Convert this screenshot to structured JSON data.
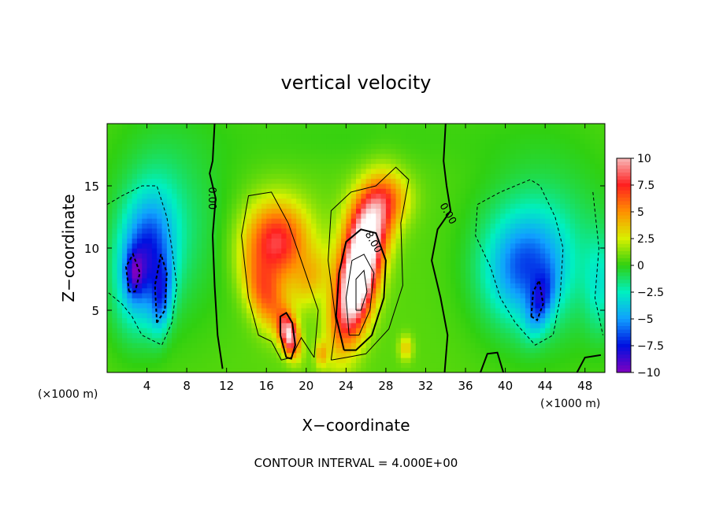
{
  "chart_data": {
    "type": "heatmap",
    "title": "vertical velocity",
    "xlabel": "X−coordinate",
    "ylabel": "Z−coordinate",
    "x_units": "(×1000 m)",
    "x_units_secondary": "(×1000 m)",
    "xlim": [
      0,
      50
    ],
    "ylim": [
      0,
      20
    ],
    "x_ticks": [
      "4",
      "8",
      "12",
      "16",
      "20",
      "24",
      "28",
      "32",
      "36",
      "40",
      "44",
      "48"
    ],
    "x_tick_values": [
      4,
      8,
      12,
      16,
      20,
      24,
      28,
      32,
      36,
      40,
      44,
      48
    ],
    "y_ticks": [
      "5",
      "10",
      "15"
    ],
    "y_tick_values": [
      5,
      10,
      15
    ],
    "colorbar": {
      "labels": [
        "10",
        "7.5",
        "5",
        "2.5",
        "0",
        "−2.5",
        "−5",
        "−7.5",
        "−10"
      ],
      "values": [
        10,
        7.5,
        5,
        2.5,
        0,
        -2.5,
        -5,
        -7.5,
        -10
      ],
      "range": [
        -10,
        10
      ],
      "colors": [
        "#f8b8b8",
        "#ff2020",
        "#ff9000",
        "#d8f000",
        "#30d010",
        "#00f0c0",
        "#10a0ff",
        "#0010e0",
        "#8000c0"
      ]
    },
    "contour_labels": [
      "0.00",
      "0.00",
      "8.00"
    ],
    "contour_interval_note": "CONTOUR INTERVAL = 4.000E+00",
    "features": [
      {
        "kind": "updraft",
        "x": 25.0,
        "z": 7.5,
        "peak": 14
      },
      {
        "kind": "updraft",
        "x": 17.0,
        "z": 10.5,
        "peak": 8
      },
      {
        "kind": "updraft",
        "x": 18.0,
        "z": 3.0,
        "peak": 10
      },
      {
        "kind": "downdraft",
        "x": 4.0,
        "z": 8.0,
        "peak": -9
      },
      {
        "kind": "downdraft",
        "x": 43.0,
        "z": 6.0,
        "peak": -8
      }
    ]
  }
}
